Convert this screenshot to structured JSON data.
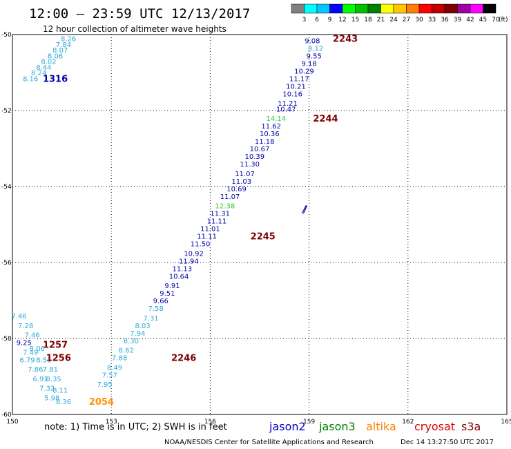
{
  "header": {
    "title": "12:00 — 23:59 UTC 12/13/2017",
    "subtitle": "12 hour collection of altimeter wave heights"
  },
  "scale": {
    "ticks": [
      "3",
      "6",
      "9",
      "12",
      "15",
      "18",
      "21",
      "24",
      "27",
      "30",
      "33",
      "36",
      "39",
      "42",
      "45",
      "70",
      "(ft)"
    ],
    "colors": [
      "#808080",
      "#00ffff",
      "#00c8ff",
      "#0000ff",
      "#00ff00",
      "#00c000",
      "#008000",
      "#ffff00",
      "#ffc800",
      "#ff8000",
      "#ff0000",
      "#c00000",
      "#800000",
      "#a000a0",
      "#ff00ff",
      "#000000"
    ]
  },
  "note": "note:  1) Time is in UTC;  2) SWH is in feet",
  "satellites": [
    {
      "name": "jason2",
      "color": "#0000cc"
    },
    {
      "name": "jason3",
      "color": "#008000"
    },
    {
      "name": "altika",
      "color": "#ff8000"
    },
    {
      "name": "cryosat",
      "color": "#e00000"
    },
    {
      "name": "s3a",
      "color": "#800000"
    }
  ],
  "footer_left": "NOAA/NESDIS Center for Satellite Applications and Research",
  "footer_right": "Dec 14 13:27:50 UTC 2017",
  "chart_data": {
    "type": "scatter",
    "x_axis": {
      "range": [
        150,
        165
      ],
      "ticks": [
        150,
        153,
        156,
        159,
        162,
        165
      ]
    },
    "y_axis": {
      "range": [
        -60,
        -50
      ],
      "ticks": [
        -50,
        -52,
        -54,
        -56,
        -58,
        -60
      ]
    },
    "grid": true,
    "colors": {
      "cyan": "#2ca8d8",
      "blue": "#0000aa",
      "green": "#33cc33",
      "darkred": "#800000",
      "orange": "#ff9000"
    },
    "labels": [
      {
        "x": 151.7,
        "y": -50.1,
        "text": "8.26",
        "c": "cyan"
      },
      {
        "x": 151.55,
        "y": -50.25,
        "text": "7.84",
        "c": "cyan"
      },
      {
        "x": 151.45,
        "y": -50.4,
        "text": "8.07",
        "c": "cyan"
      },
      {
        "x": 151.3,
        "y": -50.55,
        "text": "8.06",
        "c": "cyan"
      },
      {
        "x": 151.1,
        "y": -50.7,
        "text": "8.02",
        "c": "cyan"
      },
      {
        "x": 150.95,
        "y": -50.85,
        "text": "8.44",
        "c": "cyan"
      },
      {
        "x": 150.8,
        "y": -51.0,
        "text": "8.24",
        "c": "cyan"
      },
      {
        "x": 150.55,
        "y": -51.15,
        "text": "8.16",
        "c": "cyan"
      },
      {
        "x": 159.1,
        "y": -50.15,
        "text": "9.08",
        "c": "blue"
      },
      {
        "x": 159.2,
        "y": -50.35,
        "text": "8.12",
        "c": "cyan"
      },
      {
        "x": 159.15,
        "y": -50.55,
        "text": "9.55",
        "c": "blue"
      },
      {
        "x": 159.0,
        "y": -50.75,
        "text": "9.18",
        "c": "blue"
      },
      {
        "x": 158.85,
        "y": -50.95,
        "text": "10.29",
        "c": "blue"
      },
      {
        "x": 158.7,
        "y": -51.15,
        "text": "11.17",
        "c": "blue"
      },
      {
        "x": 158.6,
        "y": -51.35,
        "text": "10.21",
        "c": "blue"
      },
      {
        "x": 158.5,
        "y": -51.55,
        "text": "10.16",
        "c": "blue"
      },
      {
        "x": 158.35,
        "y": -51.8,
        "text": "11.21",
        "c": "blue"
      },
      {
        "x": 158.3,
        "y": -51.95,
        "text": "10.47",
        "c": "blue"
      },
      {
        "x": 158.0,
        "y": -52.2,
        "text": "14.14",
        "c": "green"
      },
      {
        "x": 157.85,
        "y": -52.4,
        "text": "11.62",
        "c": "blue"
      },
      {
        "x": 157.8,
        "y": -52.6,
        "text": "10.36",
        "c": "blue"
      },
      {
        "x": 157.65,
        "y": -52.8,
        "text": "11.18",
        "c": "blue"
      },
      {
        "x": 157.5,
        "y": -53.0,
        "text": "10.67",
        "c": "blue"
      },
      {
        "x": 157.35,
        "y": -53.2,
        "text": "10.39",
        "c": "blue"
      },
      {
        "x": 157.2,
        "y": -53.4,
        "text": "11.30",
        "c": "blue"
      },
      {
        "x": 157.05,
        "y": -53.65,
        "text": "11.07",
        "c": "blue"
      },
      {
        "x": 156.95,
        "y": -53.85,
        "text": "11.03",
        "c": "blue"
      },
      {
        "x": 156.8,
        "y": -54.05,
        "text": "10.69",
        "c": "blue"
      },
      {
        "x": 156.6,
        "y": -54.25,
        "text": "11.07",
        "c": "blue"
      },
      {
        "x": 156.45,
        "y": -54.5,
        "text": "12.38",
        "c": "green"
      },
      {
        "x": 156.3,
        "y": -54.7,
        "text": "11.31",
        "c": "blue"
      },
      {
        "x": 156.2,
        "y": -54.9,
        "text": "11.11",
        "c": "blue"
      },
      {
        "x": 156.0,
        "y": -55.1,
        "text": "11.01",
        "c": "blue"
      },
      {
        "x": 155.9,
        "y": -55.3,
        "text": "11.11",
        "c": "blue"
      },
      {
        "x": 155.7,
        "y": -55.5,
        "text": "11.50",
        "c": "blue"
      },
      {
        "x": 155.5,
        "y": -55.75,
        "text": "10.92",
        "c": "blue"
      },
      {
        "x": 155.35,
        "y": -55.95,
        "text": "11.94",
        "c": "blue"
      },
      {
        "x": 155.15,
        "y": -56.15,
        "text": "11.13",
        "c": "blue"
      },
      {
        "x": 155.05,
        "y": -56.35,
        "text": "10.64",
        "c": "blue"
      },
      {
        "x": 154.85,
        "y": -56.6,
        "text": "9.91",
        "c": "blue"
      },
      {
        "x": 154.7,
        "y": -56.8,
        "text": "9.51",
        "c": "blue"
      },
      {
        "x": 154.5,
        "y": -57.0,
        "text": "9.66",
        "c": "blue"
      },
      {
        "x": 154.35,
        "y": -57.2,
        "text": "7.58",
        "c": "cyan"
      },
      {
        "x": 154.2,
        "y": -57.45,
        "text": "7.31",
        "c": "cyan"
      },
      {
        "x": 153.95,
        "y": -57.65,
        "text": "8.03",
        "c": "cyan"
      },
      {
        "x": 153.8,
        "y": -57.85,
        "text": "7.94",
        "c": "cyan"
      },
      {
        "x": 153.6,
        "y": -58.05,
        "text": "8.30",
        "c": "cyan"
      },
      {
        "x": 153.45,
        "y": -58.3,
        "text": "8.62",
        "c": "cyan"
      },
      {
        "x": 153.25,
        "y": -58.5,
        "text": "7.88",
        "c": "cyan"
      },
      {
        "x": 153.1,
        "y": -58.75,
        "text": "8.49",
        "c": "cyan"
      },
      {
        "x": 152.95,
        "y": -58.95,
        "text": "7.57",
        "c": "cyan"
      },
      {
        "x": 152.8,
        "y": -59.2,
        "text": "7.95",
        "c": "cyan"
      },
      {
        "x": 150.2,
        "y": -57.4,
        "text": "7.46",
        "c": "cyan"
      },
      {
        "x": 150.4,
        "y": -57.65,
        "text": "7.28",
        "c": "cyan"
      },
      {
        "x": 150.6,
        "y": -57.9,
        "text": "7.46",
        "c": "cyan"
      },
      {
        "x": 150.35,
        "y": -58.1,
        "text": "9.25",
        "c": "blue"
      },
      {
        "x": 150.75,
        "y": -58.25,
        "text": "8.06",
        "c": "cyan"
      },
      {
        "x": 150.55,
        "y": -58.35,
        "text": "7.49",
        "c": "cyan"
      },
      {
        "x": 150.45,
        "y": -58.55,
        "text": "6.79",
        "c": "cyan"
      },
      {
        "x": 150.95,
        "y": -58.55,
        "text": "8.51",
        "c": "cyan"
      },
      {
        "x": 150.7,
        "y": -58.8,
        "text": "7.86",
        "c": "cyan"
      },
      {
        "x": 151.15,
        "y": -58.8,
        "text": "7.81",
        "c": "cyan"
      },
      {
        "x": 150.85,
        "y": -59.05,
        "text": "6.91",
        "c": "cyan"
      },
      {
        "x": 151.25,
        "y": -59.05,
        "text": "8.35",
        "c": "cyan"
      },
      {
        "x": 151.05,
        "y": -59.3,
        "text": "7.32",
        "c": "cyan"
      },
      {
        "x": 151.45,
        "y": -59.35,
        "text": "8.11",
        "c": "cyan"
      },
      {
        "x": 151.2,
        "y": -59.55,
        "text": "5.98",
        "c": "cyan"
      },
      {
        "x": 151.55,
        "y": -59.65,
        "text": "8.36",
        "c": "cyan"
      }
    ],
    "time_stamps": [
      {
        "x": 151.3,
        "y": -51.15,
        "text": "1316",
        "c": "blue"
      },
      {
        "x": 160.1,
        "y": -50.1,
        "text": "2243",
        "c": "darkred"
      },
      {
        "x": 159.5,
        "y": -52.2,
        "text": "2244",
        "c": "darkred"
      },
      {
        "x": 157.6,
        "y": -55.3,
        "text": "2245",
        "c": "darkred"
      },
      {
        "x": 155.2,
        "y": -58.5,
        "text": "2246",
        "c": "darkred"
      },
      {
        "x": 151.3,
        "y": -58.15,
        "text": "1257",
        "c": "darkred"
      },
      {
        "x": 151.4,
        "y": -58.5,
        "text": "1256",
        "c": "darkred"
      },
      {
        "x": 152.7,
        "y": -59.65,
        "text": "2054",
        "c": "orange"
      }
    ],
    "symbols": [
      {
        "x": 158.85,
        "y": -54.6,
        "c": "blue"
      }
    ]
  }
}
